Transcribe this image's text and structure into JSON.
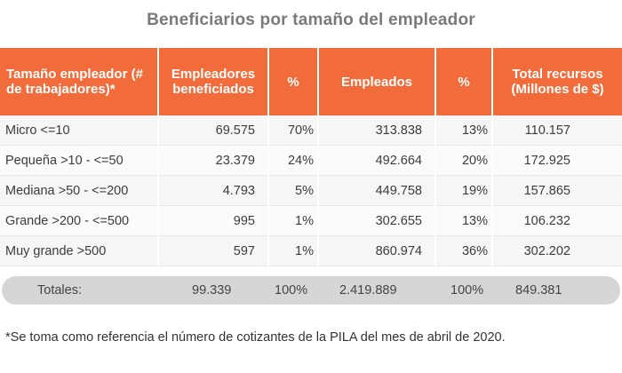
{
  "title": "Beneficiarios por tamaño del empleador",
  "table": {
    "headers": [
      "Tamaño empleador (# de trabajadores)*",
      "Empleadores beneficiados",
      "%",
      "Empleados",
      "%",
      "Total recursos (Millones de $)"
    ],
    "rows": [
      {
        "size": "Micro <=10",
        "employers": "69.575",
        "employers_pct": "70%",
        "employees": "313.838",
        "employees_pct": "13%",
        "total": "110.157"
      },
      {
        "size": "Pequeña >10 - <=50",
        "employers": "23.379",
        "employers_pct": "24%",
        "employees": "492.664",
        "employees_pct": "20%",
        "total": "172.925"
      },
      {
        "size": "Mediana >50 - <=200",
        "employers": "4.793",
        "employers_pct": "5%",
        "employees": "449.758",
        "employees_pct": "19%",
        "total": "157.865"
      },
      {
        "size": "Grande >200 - <=500",
        "employers": "995",
        "employers_pct": "1%",
        "employees": "302.655",
        "employees_pct": "13%",
        "total": "106.232"
      },
      {
        "size": "Muy grande >500",
        "employers": "597",
        "employers_pct": "1%",
        "employees": "860.974",
        "employees_pct": "36%",
        "total": "302.202"
      }
    ],
    "totals": {
      "label": "Totales:",
      "employers": "99.339",
      "employers_pct": "100%",
      "employees": "2.419.889",
      "employees_pct": "100%",
      "total": "849.381"
    }
  },
  "footnote": "*Se toma como referencia el número de cotizantes de la PILA del mes de abril de 2020.",
  "colors": {
    "header_bg": "#f26b3a",
    "totals_bg": "#d6d6d6",
    "title": "#7a7a7a"
  }
}
